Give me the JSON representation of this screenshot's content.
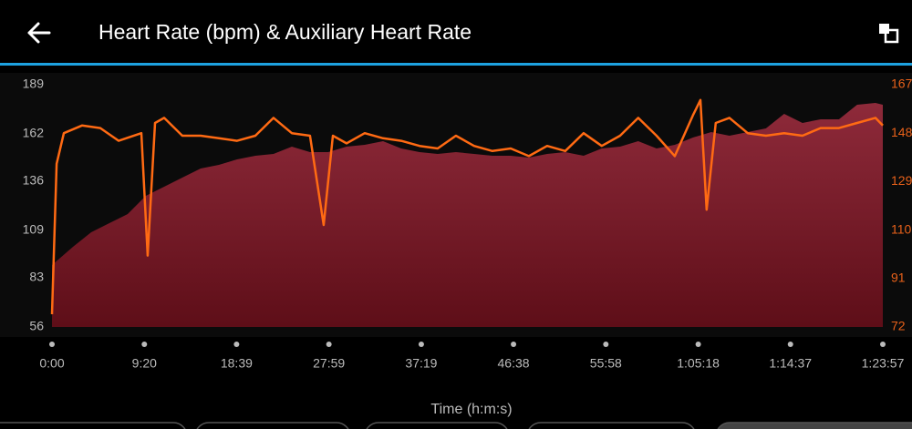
{
  "header": {
    "title": "Heart Rate (bpm) & Auxiliary Heart Rate"
  },
  "chart_data": {
    "type": "area-line",
    "x_label": "Time (h:m:s)",
    "xlim": [
      0,
      5037
    ],
    "xticks": [
      {
        "value": 0,
        "label": "0:00"
      },
      {
        "value": 560,
        "label": "9:20"
      },
      {
        "value": 1119,
        "label": "18:39"
      },
      {
        "value": 1679,
        "label": "27:59"
      },
      {
        "value": 2239,
        "label": "37:19"
      },
      {
        "value": 2798,
        "label": "46:38"
      },
      {
        "value": 3358,
        "label": "55:58"
      },
      {
        "value": 3918,
        "label": "1:05:18"
      },
      {
        "value": 4477,
        "label": "1:14:37"
      },
      {
        "value": 5037,
        "label": "1:23:57"
      }
    ],
    "ylim": [
      56,
      189
    ],
    "yticks": [
      56,
      83,
      109,
      136,
      162,
      189
    ],
    "y2lim": [
      72,
      167
    ],
    "y2ticks": [
      72,
      91,
      110,
      129,
      148,
      167
    ],
    "series": [
      {
        "color": "#7a1c2a",
        "kind": "area",
        "axis": "y",
        "x": [
          0,
          127,
          238,
          348,
          459,
          569,
          680,
          790,
          901,
          1012,
          1122,
          1233,
          1343,
          1454,
          1564,
          1675,
          1786,
          1896,
          2007,
          2117,
          2228,
          2338,
          2449,
          2559,
          2670,
          2781,
          2891,
          3002,
          3112,
          3223,
          3333,
          3444,
          3554,
          3665,
          3776,
          3886,
          3997,
          4107,
          4218,
          4328,
          4439,
          4550,
          4660,
          4771,
          4881,
          4992,
          5037
        ],
        "values": [
          90,
          100,
          108,
          113,
          118,
          128,
          133,
          138,
          143,
          145,
          148,
          150,
          151,
          155,
          152,
          152,
          155,
          156,
          158,
          154,
          152,
          151,
          152,
          151,
          150,
          150,
          149,
          151,
          152,
          150,
          154,
          155,
          158,
          154,
          156,
          160,
          163,
          161,
          163,
          165,
          173,
          168,
          170,
          170,
          178,
          179,
          178
        ]
      },
      {
        "color": "#ff6a13",
        "kind": "line",
        "axis": "y2",
        "x": [
          0,
          28,
          72,
          182,
          293,
          404,
          542,
          580,
          625,
          680,
          790,
          901,
          1012,
          1122,
          1233,
          1343,
          1454,
          1564,
          1647,
          1703,
          1786,
          1896,
          2007,
          2117,
          2228,
          2338,
          2449,
          2559,
          2670,
          2781,
          2891,
          3002,
          3112,
          3223,
          3333,
          3444,
          3554,
          3665,
          3776,
          3886,
          3931,
          3969,
          4024,
          4107,
          4218,
          4328,
          4439,
          4550,
          4660,
          4771,
          4881,
          4992,
          5037
        ],
        "values": [
          77,
          136,
          148,
          151,
          150,
          145,
          148,
          100,
          152,
          154,
          147,
          147,
          146,
          145,
          147,
          154,
          148,
          147,
          112,
          147,
          144,
          148,
          146,
          145,
          143,
          142,
          147,
          143,
          141,
          142,
          139,
          143,
          141,
          148,
          143,
          147,
          154,
          147,
          139,
          155,
          161,
          118,
          152,
          154,
          148,
          147,
          148,
          147,
          150,
          150,
          152,
          154,
          151
        ]
      }
    ]
  }
}
